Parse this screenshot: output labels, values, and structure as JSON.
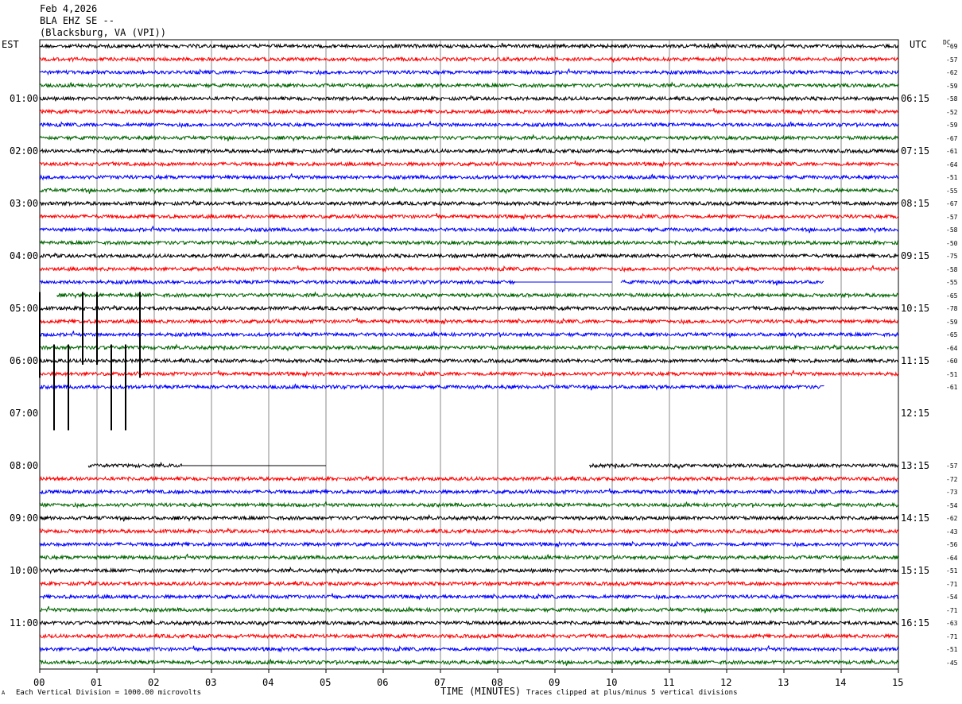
{
  "header": {
    "date": "Feb 4,2026",
    "station": "BLA EHZ SE --",
    "location": "(Blacksburg, VA (VPI))"
  },
  "left_tz": "EST",
  "right_tz": "UTC",
  "dc_label": "DC",
  "footer": {
    "scale_note": "Each Vertical Division = 1000.00 microvolts",
    "xlabel": "TIME (MINUTES)",
    "clip_note": "Traces clipped at plus/minus 5 vertical divisions",
    "corner_mark": "A"
  },
  "colors": {
    "trace_cycle": [
      "#000000",
      "#ff0000",
      "#0000ff",
      "#006400"
    ],
    "grid": "#888888"
  },
  "chart_data": {
    "type": "line",
    "title": "",
    "xlabel": "TIME (MINUTES)",
    "xlim": [
      0,
      15
    ],
    "x_ticks": [
      "00",
      "01",
      "02",
      "03",
      "04",
      "05",
      "06",
      "07",
      "08",
      "09",
      "10",
      "11",
      "12",
      "13",
      "14",
      "15"
    ],
    "rows_per_hour": 4,
    "row_count": 48,
    "left_hour_labels": [
      "01:00",
      "02:00",
      "03:00",
      "04:00",
      "05:00",
      "06:00",
      "07:00",
      "08:00",
      "09:00",
      "10:00",
      "11:00"
    ],
    "right_hour_labels": [
      "06:15",
      "07:15",
      "08:15",
      "09:15",
      "10:15",
      "11:15",
      "12:15",
      "13:15",
      "14:15",
      "15:15",
      "16:15"
    ],
    "dc_offsets": [
      "-69",
      "-57",
      "-62",
      "-59",
      "-58",
      "-52",
      "-59",
      "-67",
      "-61",
      "-64",
      "-51",
      "-55",
      "-67",
      "-57",
      "-58",
      "-50",
      "-75",
      "-58",
      "-55",
      "-65",
      "-78",
      "-59",
      "-65",
      "-64",
      "-60",
      "-51",
      "-61",
      "",
      "",
      "",
      "",
      "",
      "-57",
      "-72",
      "-73",
      "-54",
      "-62",
      "-43",
      "-56",
      "-64",
      "-51",
      "-71",
      "-54",
      "-71",
      "-63",
      "-71",
      "-51",
      "-45"
    ],
    "traces": [
      {
        "row": 0,
        "segments": [
          [
            0,
            15
          ]
        ]
      },
      {
        "row": 1,
        "segments": [
          [
            0,
            15
          ]
        ]
      },
      {
        "row": 2,
        "segments": [
          [
            0,
            15
          ]
        ]
      },
      {
        "row": 3,
        "segments": [
          [
            0,
            15
          ]
        ]
      },
      {
        "row": 4,
        "segments": [
          [
            0,
            15
          ]
        ]
      },
      {
        "row": 5,
        "segments": [
          [
            0,
            15
          ]
        ]
      },
      {
        "row": 6,
        "segments": [
          [
            0,
            15
          ]
        ]
      },
      {
        "row": 7,
        "segments": [
          [
            0,
            15
          ]
        ]
      },
      {
        "row": 8,
        "segments": [
          [
            0,
            15
          ]
        ]
      },
      {
        "row": 9,
        "segments": [
          [
            0,
            15
          ]
        ]
      },
      {
        "row": 10,
        "segments": [
          [
            0,
            15
          ]
        ]
      },
      {
        "row": 11,
        "segments": [
          [
            0,
            15
          ]
        ]
      },
      {
        "row": 12,
        "segments": [
          [
            0,
            15
          ]
        ]
      },
      {
        "row": 13,
        "segments": [
          [
            0,
            15
          ]
        ]
      },
      {
        "row": 14,
        "segments": [
          [
            0,
            15
          ]
        ]
      },
      {
        "row": 15,
        "segments": [
          [
            0,
            15
          ]
        ]
      },
      {
        "row": 16,
        "segments": [
          [
            0,
            15
          ]
        ]
      },
      {
        "row": 17,
        "segments": [
          [
            0,
            15
          ]
        ]
      },
      {
        "row": 18,
        "segments": [
          [
            0,
            8.3
          ]
        ],
        "flat": [
          [
            8.3,
            10
          ]
        ],
        "segments2": [
          [
            10.15,
            13.7
          ]
        ]
      },
      {
        "row": 19,
        "segments": [
          [
            0.3,
            15
          ]
        ]
      },
      {
        "row": 20,
        "segments": [
          [
            0,
            15
          ]
        ]
      },
      {
        "row": 21,
        "segments": [
          [
            0,
            15
          ]
        ]
      },
      {
        "row": 22,
        "segments": [
          [
            0,
            15
          ]
        ]
      },
      {
        "row": 23,
        "segments": [
          [
            0,
            15
          ]
        ]
      },
      {
        "row": 24,
        "segments": [
          [
            0,
            15
          ]
        ]
      },
      {
        "row": 25,
        "segments": [
          [
            0,
            15
          ]
        ]
      },
      {
        "row": 26,
        "segments": [
          [
            0,
            13.7
          ]
        ]
      },
      {
        "row": 32,
        "segments": [
          [
            0.85,
            2.5
          ],
          [
            9.6,
            15
          ]
        ],
        "flat": [
          [
            2.5,
            5
          ]
        ]
      },
      {
        "row": 33,
        "segments": [
          [
            0,
            15
          ]
        ]
      },
      {
        "row": 34,
        "segments": [
          [
            0,
            15
          ]
        ]
      },
      {
        "row": 35,
        "segments": [
          [
            0,
            15
          ]
        ]
      },
      {
        "row": 36,
        "segments": [
          [
            0,
            15
          ]
        ]
      },
      {
        "row": 37,
        "segments": [
          [
            0,
            15
          ]
        ]
      },
      {
        "row": 38,
        "segments": [
          [
            0,
            15
          ]
        ]
      },
      {
        "row": 39,
        "segments": [
          [
            0,
            15
          ]
        ]
      },
      {
        "row": 40,
        "segments": [
          [
            0,
            15
          ]
        ]
      },
      {
        "row": 41,
        "segments": [
          [
            0,
            15
          ]
        ]
      },
      {
        "row": 42,
        "segments": [
          [
            0,
            15
          ]
        ]
      },
      {
        "row": 43,
        "segments": [
          [
            0,
            15
          ]
        ]
      },
      {
        "row": 44,
        "segments": [
          [
            0,
            15
          ]
        ]
      },
      {
        "row": 45,
        "segments": [
          [
            0,
            15
          ]
        ]
      },
      {
        "row": 46,
        "segments": [
          [
            0,
            15
          ]
        ]
      },
      {
        "row": 47,
        "segments": [
          [
            0,
            15
          ]
        ]
      }
    ],
    "spikes": [
      {
        "x": 0.0,
        "row": 21,
        "top_row": 19,
        "bottom_row": 25
      },
      {
        "x": 0.25,
        "row": 24,
        "top_row": 23,
        "bottom_row": 29
      },
      {
        "x": 0.5,
        "row": 24,
        "top_row": 23,
        "bottom_row": 29
      },
      {
        "x": 0.75,
        "row": 21,
        "top_row": 19,
        "bottom_row": 24
      },
      {
        "x": 1.0,
        "row": 21,
        "top_row": 19,
        "bottom_row": 24
      },
      {
        "x": 1.25,
        "row": 24,
        "top_row": 23,
        "bottom_row": 29
      },
      {
        "x": 1.5,
        "row": 24,
        "top_row": 23,
        "bottom_row": 29
      },
      {
        "x": 1.75,
        "row": 21,
        "top_row": 19,
        "bottom_row": 25
      }
    ]
  }
}
